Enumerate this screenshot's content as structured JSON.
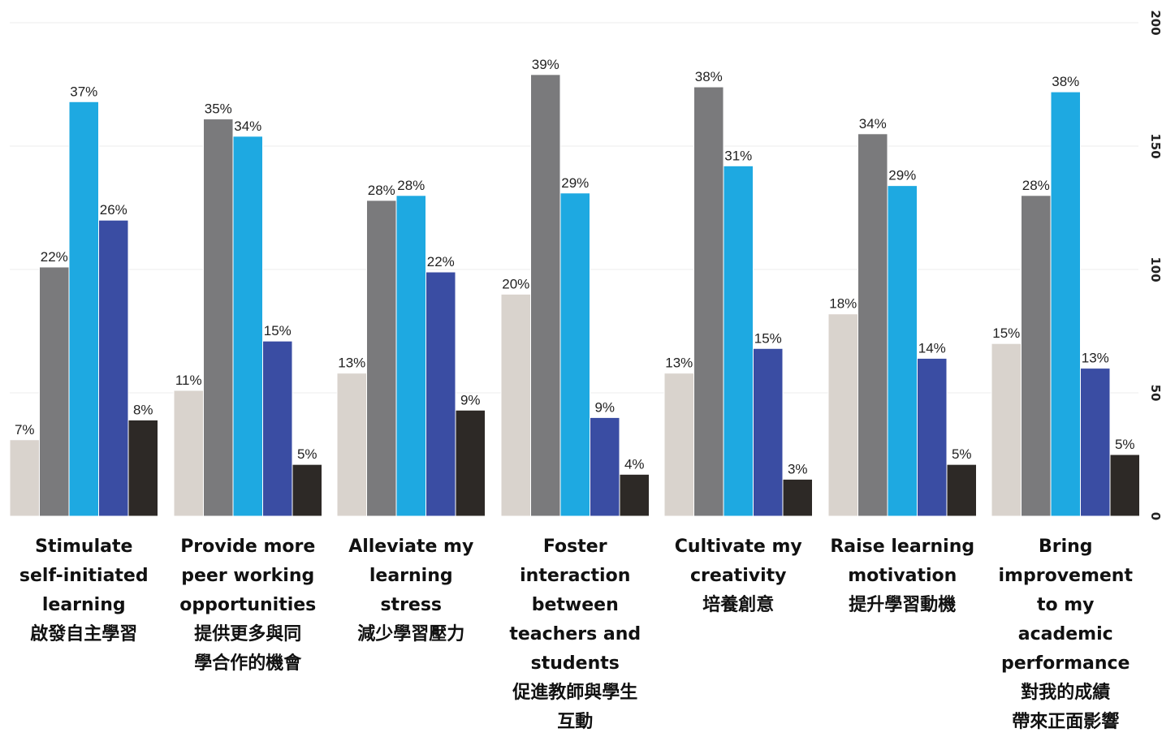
{
  "chart_data": {
    "type": "bar",
    "title": "",
    "xlabel": "",
    "ylabel": "",
    "ylim": [
      0,
      200
    ],
    "yticks": [
      "0",
      "50",
      "100",
      "150",
      "200"
    ],
    "y_axis_position": "right",
    "y_tick_rotation": "vertical",
    "grid": true,
    "categories": [
      [
        "Stimulate",
        "self-initiated",
        "learning",
        "啟發自主學習"
      ],
      [
        "Provide more",
        "peer working",
        "opportunities",
        "提供更多與同",
        "學合作的機會"
      ],
      [
        "Alleviate my",
        "learning",
        "stress",
        "減少學習壓力"
      ],
      [
        "Foster",
        "interaction",
        "between",
        "teachers and",
        "students",
        "促進教師與學生",
        "互動"
      ],
      [
        "Cultivate my",
        "creativity",
        "培養創意"
      ],
      [
        "Raise learning",
        "motivation",
        "提升學習動機"
      ],
      [
        "Bring",
        "improvement",
        "to my",
        "academic",
        "performance",
        "對我的成績",
        "帶來正面影響"
      ]
    ],
    "series": [
      {
        "color": "#d9d3cd",
        "values": [
          31,
          51,
          58,
          90,
          58,
          82,
          70
        ],
        "labels": [
          "7%",
          "11%",
          "13%",
          "20%",
          "13%",
          "18%",
          "15%"
        ]
      },
      {
        "color": "#7a7a7c",
        "values": [
          101,
          161,
          128,
          179,
          174,
          155,
          130
        ],
        "labels": [
          "22%",
          "35%",
          "28%",
          "39%",
          "38%",
          "34%",
          "28%"
        ]
      },
      {
        "color": "#1ea9e1",
        "values": [
          168,
          154,
          130,
          131,
          142,
          134,
          172
        ],
        "labels": [
          "37%",
          "34%",
          "28%",
          "29%",
          "31%",
          "29%",
          "38%"
        ]
      },
      {
        "color": "#3a4da3",
        "values": [
          120,
          71,
          99,
          40,
          68,
          64,
          60
        ],
        "labels": [
          "26%",
          "15%",
          "22%",
          "9%",
          "15%",
          "14%",
          "13%"
        ]
      },
      {
        "color": "#2d2926",
        "values": [
          39,
          21,
          43,
          17,
          15,
          21,
          25
        ],
        "labels": [
          "8%",
          "5%",
          "9%",
          "4%",
          "3%",
          "5%",
          "5%"
        ]
      }
    ]
  }
}
